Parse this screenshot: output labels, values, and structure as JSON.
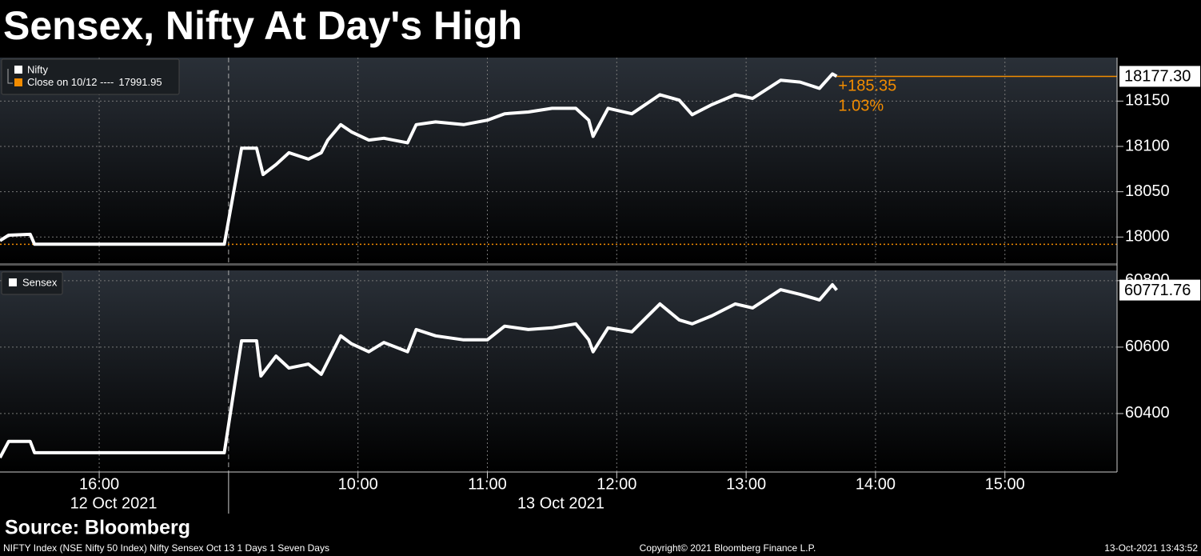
{
  "title": "Sensex, Nifty At Day's High",
  "source": "Source: Bloomberg",
  "footer": {
    "left": "NIFTY Index (NSE Nifty 50 Index) Nifty Sensex Oct 13 1 Days 1 Seven Days",
    "center": "Copyright© 2021 Bloomberg Finance L.P.",
    "right": "13-Oct-2021 13:43:52"
  },
  "x_axis": {
    "sessions": [
      {
        "label": "12 Oct 2021",
        "xlim": [
          "2021-10-12 15:14",
          "2021-10-12 17:00"
        ]
      },
      {
        "label": "13 Oct 2021",
        "xlim": [
          "2021-10-13 09:00",
          "2021-10-13 15:52"
        ]
      }
    ],
    "xticks": [
      {
        "value": "2021-10-12 16:00",
        "label": "16:00"
      },
      {
        "value": "2021-10-13 10:00",
        "label": "10:00"
      },
      {
        "value": "2021-10-13 11:00",
        "label": "11:00"
      },
      {
        "value": "2021-10-13 12:00",
        "label": "12:00"
      },
      {
        "value": "2021-10-13 13:00",
        "label": "13:00"
      },
      {
        "value": "2021-10-13 14:00",
        "label": "14:00"
      },
      {
        "value": "2021-10-13 15:00",
        "label": "15:00"
      }
    ],
    "grid": true
  },
  "chart_data": [
    {
      "type": "line",
      "x": [
        "2021-10-12 15:14",
        "2021-10-12 15:18",
        "2021-10-12 15:28",
        "2021-10-12 15:30",
        "2021-10-12 16:58",
        "2021-10-13 09:06",
        "2021-10-13 09:13",
        "2021-10-13 09:16",
        "2021-10-13 09:22",
        "2021-10-13 09:28",
        "2021-10-13 09:37",
        "2021-10-13 09:43",
        "2021-10-13 09:46",
        "2021-10-13 09:52",
        "2021-10-13 09:57",
        "2021-10-13 10:05",
        "2021-10-13 10:12",
        "2021-10-13 10:23",
        "2021-10-13 10:27",
        "2021-10-13 10:36",
        "2021-10-13 10:49",
        "2021-10-13 11:00",
        "2021-10-13 11:08",
        "2021-10-13 11:19",
        "2021-10-13 11:30",
        "2021-10-13 11:41",
        "2021-10-13 11:47",
        "2021-10-13 11:49",
        "2021-10-13 11:56",
        "2021-10-13 12:07",
        "2021-10-13 12:20",
        "2021-10-13 12:29",
        "2021-10-13 12:35",
        "2021-10-13 12:44",
        "2021-10-13 12:55",
        "2021-10-13 13:03",
        "2021-10-13 13:16",
        "2021-10-13 13:25",
        "2021-10-13 13:34",
        "2021-10-13 13:40",
        "2021-10-13 13:42"
      ],
      "series": [
        {
          "name": "Nifty",
          "color": "#ffffff",
          "values": [
            17996,
            18002,
            18003,
            17992,
            17992,
            18098,
            18098,
            18069,
            18080,
            18093,
            18086,
            18093,
            18107,
            18124,
            18116,
            18107,
            18109,
            18104,
            18124,
            18127,
            18124,
            18129,
            18136,
            18138,
            18142,
            18142,
            18129,
            18111,
            18142,
            18136,
            18157,
            18151,
            18135,
            18146,
            18157,
            18153,
            18173,
            18171,
            18164,
            18180,
            18177.3
          ]
        }
      ],
      "last": {
        "value": 18177.3,
        "label": "18177.30"
      },
      "change": {
        "value": 185.35,
        "label": "+185.35"
      },
      "change_pct": {
        "value": 1.03,
        "label": "1.03%"
      },
      "prev_close": {
        "name": "Close on 10/12 ----",
        "value": 17991.95,
        "color": "#f28c00"
      },
      "ylim": [
        17972,
        18198
      ],
      "yticks": [
        18000,
        18050,
        18100,
        18150
      ]
    },
    {
      "type": "line",
      "x": [
        "2021-10-12 15:14",
        "2021-10-12 15:18",
        "2021-10-12 15:28",
        "2021-10-12 15:30",
        "2021-10-12 16:58",
        "2021-10-13 09:06",
        "2021-10-13 09:13",
        "2021-10-13 09:15",
        "2021-10-13 09:22",
        "2021-10-13 09:28",
        "2021-10-13 09:37",
        "2021-10-13 09:43",
        "2021-10-13 09:52",
        "2021-10-13 09:57",
        "2021-10-13 10:05",
        "2021-10-13 10:12",
        "2021-10-13 10:23",
        "2021-10-13 10:27",
        "2021-10-13 10:36",
        "2021-10-13 10:49",
        "2021-10-13 11:00",
        "2021-10-13 11:08",
        "2021-10-13 11:19",
        "2021-10-13 11:30",
        "2021-10-13 11:41",
        "2021-10-13 11:47",
        "2021-10-13 11:49",
        "2021-10-13 11:56",
        "2021-10-13 12:07",
        "2021-10-13 12:20",
        "2021-10-13 12:29",
        "2021-10-13 12:35",
        "2021-10-13 12:44",
        "2021-10-13 12:55",
        "2021-10-13 13:03",
        "2021-10-13 13:16",
        "2021-10-13 13:25",
        "2021-10-13 13:34",
        "2021-10-13 13:40",
        "2021-10-13 13:42"
      ],
      "series": [
        {
          "name": "Sensex",
          "color": "#ffffff",
          "values": [
            60267,
            60316,
            60316,
            60282,
            60282,
            60619,
            60619,
            60513,
            60573,
            60537,
            60549,
            60518,
            60634,
            60610,
            60586,
            60614,
            60586,
            60653,
            60634,
            60622,
            60622,
            60663,
            60653,
            60658,
            60670,
            60622,
            60586,
            60658,
            60646,
            60730,
            60682,
            60670,
            60694,
            60730,
            60718,
            60773,
            60759,
            60742,
            60788,
            60771.76
          ]
        }
      ],
      "last": {
        "value": 60771.76
      },
      "ylim": [
        60224,
        60831
      ],
      "yticks": [
        60400,
        60600,
        60800
      ]
    }
  ]
}
